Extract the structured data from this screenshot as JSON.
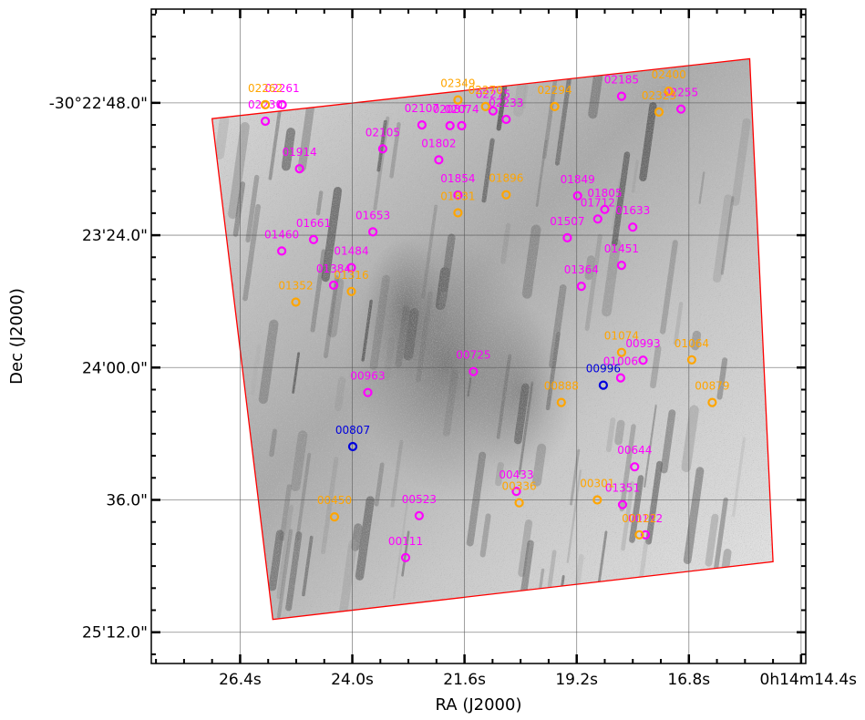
{
  "chart_data": {
    "type": "scatter",
    "xlabel": "RA (J2000)",
    "ylabel": "Dec (J2000)",
    "x_ticks": [
      {
        "label": "26.4s",
        "ra_s": 26.4
      },
      {
        "label": "24.0s",
        "ra_s": 24.0
      },
      {
        "label": "21.6s",
        "ra_s": 21.6
      },
      {
        "label": "19.2s",
        "ra_s": 19.2
      },
      {
        "label": "16.8s",
        "ra_s": 16.8
      },
      {
        "label": "0h14m14.4s",
        "ra_s": 14.4
      }
    ],
    "y_ticks": [
      {
        "label": "-30°22'48.0\"",
        "dec_off_s": 0
      },
      {
        "label": "23'24.0\"",
        "dec_off_s": 36
      },
      {
        "label": "24'00.0\"",
        "dec_off_s": 72
      },
      {
        "label": "36.0\"",
        "dec_off_s": 108
      },
      {
        "label": "25'12.0\"",
        "dec_off_s": 144
      }
    ],
    "xlim": [
      28.3,
      14.3
    ],
    "ylim": [
      -25.5,
      152.5
    ],
    "grid": true,
    "footprint": [
      [
        27.0,
        4.3
      ],
      [
        15.5,
        -12.0
      ],
      [
        15.0,
        124.8
      ],
      [
        25.7,
        140.5
      ]
    ],
    "series": [
      {
        "color": "#ff00ff",
        "points": [
          {
            "id": "02261",
            "ra": 25.5,
            "dec": 0.5
          },
          {
            "id": "02230",
            "ra": 25.86,
            "dec": 5.0
          },
          {
            "id": "02105",
            "ra": 23.35,
            "dec": 12.5
          },
          {
            "id": "02107",
            "ra": 22.51,
            "dec": 6.0
          },
          {
            "id": "02087",
            "ra": 21.91,
            "dec": 6.2
          },
          {
            "id": "02074",
            "ra": 21.66,
            "dec": 6.2
          },
          {
            "id": "01802",
            "ra": 22.15,
            "dec": 15.5
          },
          {
            "id": "02275",
            "ra": 20.99,
            "dec": 2.2
          },
          {
            "id": "02233",
            "ra": 20.71,
            "dec": 4.5
          },
          {
            "id": "02185",
            "ra": 18.24,
            "dec": -1.8
          },
          {
            "id": "02255",
            "ra": 16.97,
            "dec": 1.7
          },
          {
            "id": "01914",
            "ra": 25.13,
            "dec": 17.9
          },
          {
            "id": "01854",
            "ra": 21.74,
            "dec": 25.1
          },
          {
            "id": "01849",
            "ra": 19.18,
            "dec": 25.3
          },
          {
            "id": "01805",
            "ra": 18.6,
            "dec": 29.0
          },
          {
            "id": "01712",
            "ra": 18.75,
            "dec": 31.6
          },
          {
            "id": "01633",
            "ra": 18.0,
            "dec": 33.8
          },
          {
            "id": "01661",
            "ra": 24.83,
            "dec": 37.2
          },
          {
            "id": "01653",
            "ra": 23.56,
            "dec": 35.1
          },
          {
            "id": "01460",
            "ra": 25.51,
            "dec": 40.3
          },
          {
            "id": "01507",
            "ra": 19.4,
            "dec": 36.7
          },
          {
            "id": "01484",
            "ra": 24.02,
            "dec": 44.8
          },
          {
            "id": "01451",
            "ra": 18.24,
            "dec": 44.2
          },
          {
            "id": "01384",
            "ra": 24.4,
            "dec": 49.6
          },
          {
            "id": "01364",
            "ra": 19.1,
            "dec": 49.9
          },
          {
            "id": "00725",
            "ra": 21.41,
            "dec": 73.1
          },
          {
            "id": "00963",
            "ra": 23.67,
            "dec": 78.8
          },
          {
            "id": "00993",
            "ra": 17.78,
            "dec": 70.0
          },
          {
            "id": "01006",
            "ra": 18.26,
            "dec": 74.8
          },
          {
            "id": "00644",
            "ra": 17.96,
            "dec": 99.0
          },
          {
            "id": "00523",
            "ra": 22.57,
            "dec": 112.3
          },
          {
            "id": "00433",
            "ra": 20.49,
            "dec": 105.7
          },
          {
            "id": "01351",
            "ra": 18.22,
            "dec": 109.3
          },
          {
            "id": "00112",
            "ra": 17.73,
            "dec": 117.5
          },
          {
            "id": "00111",
            "ra": 22.86,
            "dec": 123.7
          }
        ]
      },
      {
        "color": "#ffa500",
        "points": [
          {
            "id": "02262",
            "ra": 25.86,
            "dec": 0.5
          },
          {
            "id": "02349",
            "ra": 21.74,
            "dec": -0.8
          },
          {
            "id": "02270",
            "ra": 21.15,
            "dec": 1.0
          },
          {
            "id": "02294",
            "ra": 19.67,
            "dec": 1.0
          },
          {
            "id": "02400",
            "ra": 17.23,
            "dec": -3.2
          },
          {
            "id": "02323",
            "ra": 17.44,
            "dec": 2.5
          },
          {
            "id": "01896",
            "ra": 20.71,
            "dec": 25.0
          },
          {
            "id": "01831",
            "ra": 21.74,
            "dec": 29.9
          },
          {
            "id": "01352",
            "ra": 25.21,
            "dec": 54.2
          },
          {
            "id": "01316",
            "ra": 24.02,
            "dec": 51.3
          },
          {
            "id": "01074",
            "ra": 18.24,
            "dec": 67.9
          },
          {
            "id": "01064",
            "ra": 16.74,
            "dec": 69.9
          },
          {
            "id": "00888",
            "ra": 19.53,
            "dec": 81.5
          },
          {
            "id": "00879",
            "ra": 16.3,
            "dec": 81.5
          },
          {
            "id": "00450",
            "ra": 24.38,
            "dec": 112.6
          },
          {
            "id": "00336",
            "ra": 20.43,
            "dec": 108.8
          },
          {
            "id": "00301",
            "ra": 18.76,
            "dec": 108.0
          },
          {
            "id": "00122",
            "ra": 17.86,
            "dec": 117.5
          }
        ]
      },
      {
        "color": "#0000dd",
        "points": [
          {
            "id": "00996",
            "ra": 18.63,
            "dec": 76.8
          },
          {
            "id": "00807",
            "ra": 23.99,
            "dec": 93.5
          }
        ]
      }
    ]
  }
}
